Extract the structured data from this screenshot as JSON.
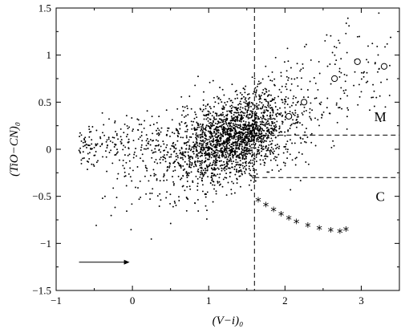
{
  "chart_data": {
    "type": "scatter",
    "xlabel": "(V−i)₀",
    "ylabel": "(TiO−CN)₀",
    "xlim": [
      -1,
      3.5
    ],
    "ylim": [
      -1.5,
      1.5
    ],
    "x_ticks": [
      -1,
      0,
      1,
      2,
      3
    ],
    "x_tick_labels": [
      "−1",
      "0",
      "1",
      "2",
      "3"
    ],
    "y_ticks": [
      -1.5,
      -1,
      -0.5,
      0,
      0.5,
      1,
      1.5
    ],
    "y_tick_labels": [
      "−1.5",
      "−1",
      "−0.5",
      "0",
      "0.5",
      "1",
      "1.5"
    ],
    "dividers": {
      "vertical_x": 1.6,
      "upper_y": 0.15,
      "lower_y": -0.3
    },
    "region_labels": [
      {
        "text": "M",
        "x": 3.25,
        "y": 0.35
      },
      {
        "text": "C",
        "x": 3.25,
        "y": -0.5
      }
    ],
    "field_stars_estimated_count": 2600,
    "open_circles": [
      {
        "x": 2.05,
        "y": 0.35
      },
      {
        "x": 2.25,
        "y": 0.5
      },
      {
        "x": 2.65,
        "y": 0.75
      },
      {
        "x": 2.95,
        "y": 0.93
      },
      {
        "x": 3.3,
        "y": 0.88
      }
    ],
    "asterisks": [
      {
        "x": 1.65,
        "y": -0.55
      },
      {
        "x": 1.75,
        "y": -0.6
      },
      {
        "x": 1.85,
        "y": -0.65
      },
      {
        "x": 1.95,
        "y": -0.7
      },
      {
        "x": 2.05,
        "y": -0.74
      },
      {
        "x": 2.15,
        "y": -0.78
      },
      {
        "x": 2.3,
        "y": -0.82
      },
      {
        "x": 2.45,
        "y": -0.85
      },
      {
        "x": 2.6,
        "y": -0.87
      },
      {
        "x": 2.72,
        "y": -0.88
      },
      {
        "x": 2.8,
        "y": -0.86
      }
    ],
    "arrow": {
      "x_start": -0.7,
      "x_end": -0.1,
      "y": -1.2
    }
  }
}
